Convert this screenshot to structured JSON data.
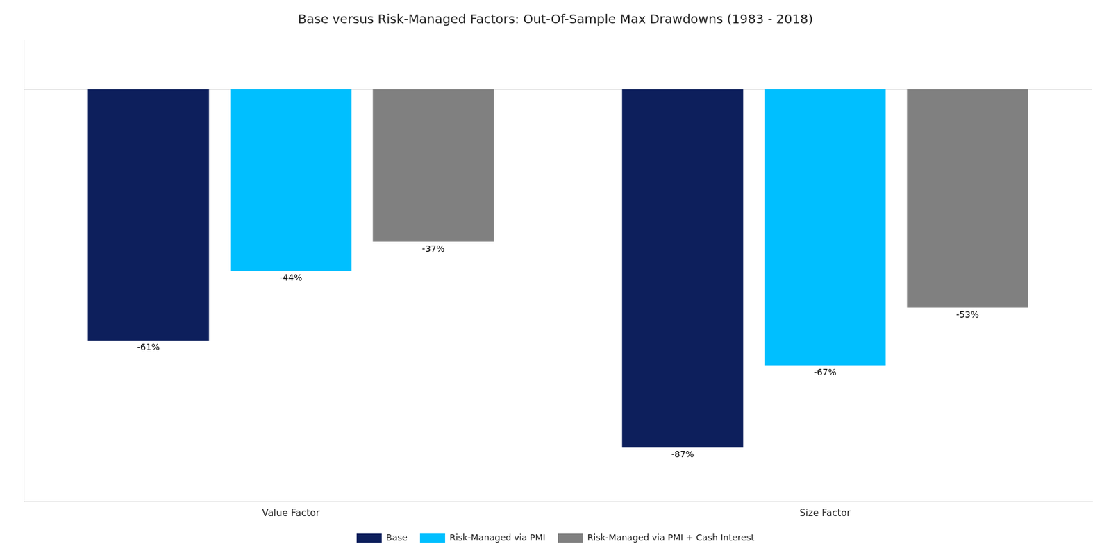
{
  "chart_data": {
    "type": "bar",
    "title": "Base versus Risk-Managed Factors: Out-Of-Sample Max Drawdowns (1983 - 2018)",
    "categories": [
      "Value Factor",
      "Size Factor"
    ],
    "series": [
      {
        "name": "Base",
        "color": "#0d1f5c",
        "values": [
          -61,
          -87
        ],
        "value_labels": [
          "-61%",
          "-87%"
        ]
      },
      {
        "name": "Risk-Managed via PMI",
        "color": "#00bfff",
        "values": [
          -44,
          -67
        ],
        "value_labels": [
          "-44%",
          "-67%"
        ]
      },
      {
        "name": "Risk-Managed via PMI + Cash Interest",
        "color": "#808080",
        "values": [
          -37,
          -53
        ],
        "value_labels": [
          "-37%",
          "-53%"
        ]
      }
    ],
    "ylim": [
      -100,
      12
    ],
    "yticks": [],
    "grid": false,
    "legend": "bottom",
    "data_labels": true,
    "tick_labels": "x"
  }
}
